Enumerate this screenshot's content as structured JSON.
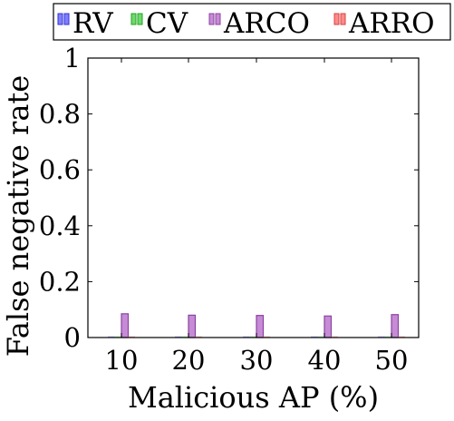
{
  "chart_data": {
    "type": "bar",
    "title": "",
    "xlabel": "Malicious AP (%)",
    "ylabel": "False negative rate",
    "categories": [
      "10",
      "20",
      "30",
      "40",
      "50"
    ],
    "ylim": [
      0,
      1
    ],
    "yticks": [
      "0",
      "0.2",
      "0.4",
      "0.6",
      "0.8",
      "1"
    ],
    "legend_position": "top",
    "grid": false,
    "series": [
      {
        "name": "RV",
        "color": "#3b3bff",
        "values": [
          0,
          0,
          0,
          0,
          0
        ]
      },
      {
        "name": "CV",
        "color": "#22c322",
        "values": [
          0,
          0,
          0,
          0,
          0
        ]
      },
      {
        "name": "ARCO",
        "color": "#a64dbf",
        "values": [
          0.085,
          0.08,
          0.079,
          0.077,
          0.082
        ]
      },
      {
        "name": "ARRO",
        "color": "#ff4d4d",
        "values": [
          0,
          0,
          0,
          0,
          0
        ]
      }
    ]
  }
}
